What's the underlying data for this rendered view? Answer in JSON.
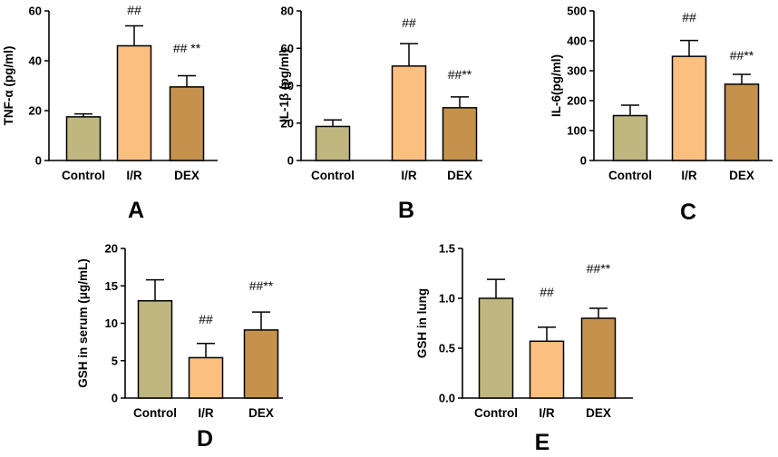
{
  "chart_data": [
    {
      "type": "bar",
      "panel_label": "A",
      "categories": [
        "Control",
        "I/R",
        "DEX"
      ],
      "values": [
        17.5,
        46,
        29.5
      ],
      "errors": [
        1.2,
        8,
        4.5
      ],
      "annotations": [
        "",
        "##",
        "## **"
      ],
      "ylabel": "TNF-α (pg/ml)",
      "ylim": [
        0,
        60
      ],
      "yticks": [
        "0",
        "20",
        "40",
        "60"
      ],
      "tick_values": [
        0,
        20,
        40,
        60
      ]
    },
    {
      "type": "bar",
      "panel_label": "B",
      "categories": [
        "Control",
        "I/R",
        "DEX"
      ],
      "values": [
        18.2,
        50.5,
        28.2
      ],
      "errors": [
        3.5,
        12,
        5.8
      ],
      "annotations": [
        "",
        "##",
        "##**"
      ],
      "ylabel": "IL-1β (pg/ml)",
      "ylim": [
        0,
        80
      ],
      "yticks": [
        "0",
        "20",
        "40",
        "60",
        "80"
      ],
      "tick_values": [
        0,
        20,
        40,
        60,
        80
      ]
    },
    {
      "type": "bar",
      "panel_label": "C",
      "categories": [
        "Control",
        "I/R",
        "DEX"
      ],
      "values": [
        150,
        348,
        255
      ],
      "errors": [
        35,
        53,
        33
      ],
      "annotations": [
        "",
        "##",
        "##**"
      ],
      "ylabel": "IL-6(pg/ml)",
      "ylim": [
        0,
        500
      ],
      "yticks": [
        "0",
        "100",
        "200",
        "300",
        "400",
        "500"
      ],
      "tick_values": [
        0,
        100,
        200,
        300,
        400,
        500
      ]
    },
    {
      "type": "bar",
      "panel_label": "D",
      "categories": [
        "Control",
        "I/R",
        "DEX"
      ],
      "values": [
        13.0,
        5.4,
        9.1
      ],
      "errors": [
        2.8,
        1.9,
        2.4
      ],
      "annotations": [
        "",
        "##",
        "##**"
      ],
      "ylabel": "GSH in serum (μg/mL)",
      "ylim": [
        0,
        20
      ],
      "yticks": [
        "0",
        "5",
        "10",
        "15",
        "20"
      ],
      "tick_values": [
        0,
        5,
        10,
        15,
        20
      ]
    },
    {
      "type": "bar",
      "panel_label": "E",
      "categories": [
        "Control",
        "I/R",
        "DEX"
      ],
      "values": [
        1.0,
        0.57,
        0.8
      ],
      "errors": [
        0.19,
        0.14,
        0.1
      ],
      "annotations": [
        "",
        "##",
        "##**"
      ],
      "ylabel": "GSH in lung",
      "ylim": [
        0,
        1.5
      ],
      "yticks": [
        "0.0",
        "0.5",
        "1.0",
        "1.5"
      ],
      "tick_values": [
        0,
        0.5,
        1.0,
        1.5
      ]
    }
  ],
  "colors": {
    "control": "#bfb77f",
    "ir": "#fbbf7f",
    "dex": "#c4924d",
    "outline": "#000000"
  }
}
